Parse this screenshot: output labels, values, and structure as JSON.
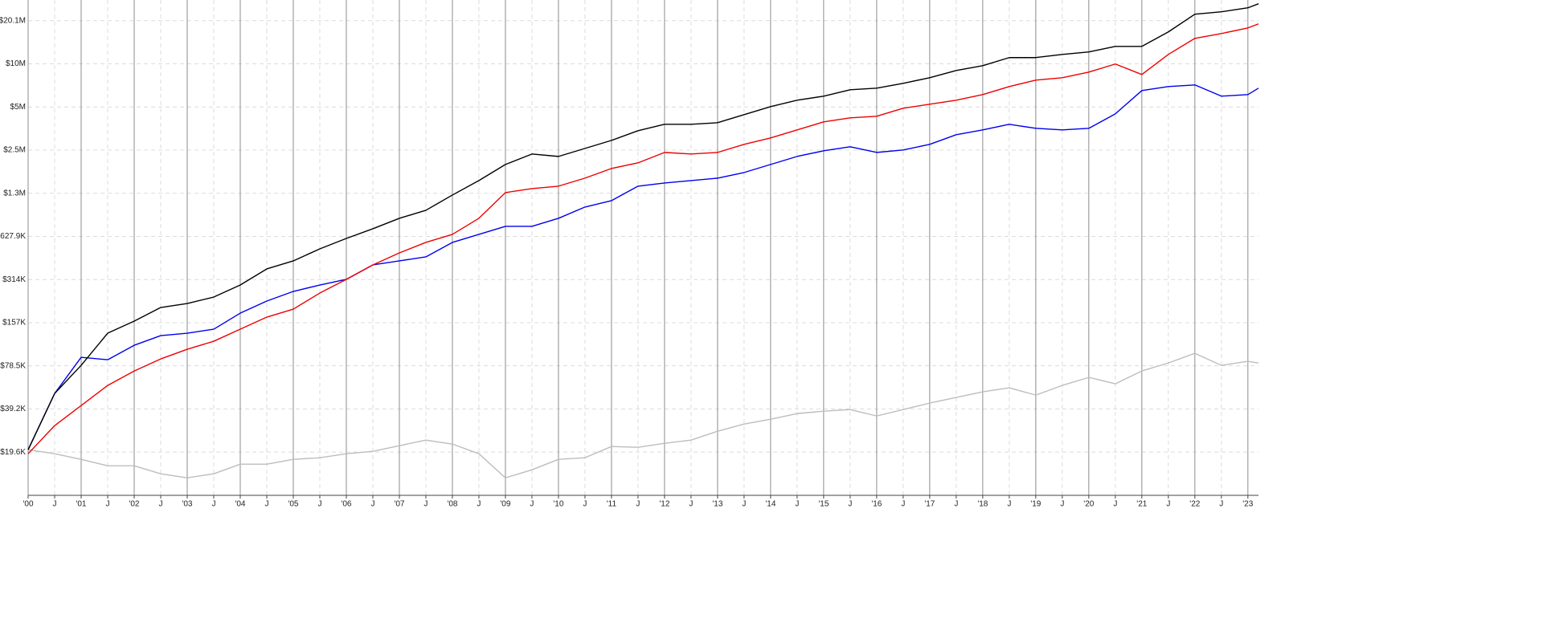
{
  "chart_data": {
    "type": "line",
    "log_y": true,
    "grid": true,
    "xlim": [
      2000,
      2023.2
    ],
    "ylim": [
      9800,
      28000000
    ],
    "yticks": [
      {
        "value": 19622,
        "label": "$19.6K"
      },
      {
        "value": 39244,
        "label": "$39.2K"
      },
      {
        "value": 78488,
        "label": "$78.5K"
      },
      {
        "value": 156975,
        "label": "$157K"
      },
      {
        "value": 313950,
        "label": "$314K"
      },
      {
        "value": 627900,
        "label": "$627.9K"
      },
      {
        "value": 1255800,
        "label": "$1.3M"
      },
      {
        "value": 2511600,
        "label": "$2.5M"
      },
      {
        "value": 5023200,
        "label": "$5M"
      },
      {
        "value": 10046400,
        "label": "$10M"
      },
      {
        "value": 20092800,
        "label": "$20.1M"
      }
    ],
    "xticks": [
      {
        "value": 2000,
        "label": "'00"
      },
      {
        "value": 2000.5,
        "label": "J"
      },
      {
        "value": 2001,
        "label": "'01"
      },
      {
        "value": 2001.5,
        "label": "J"
      },
      {
        "value": 2002,
        "label": "'02"
      },
      {
        "value": 2002.5,
        "label": "J"
      },
      {
        "value": 2003,
        "label": "'03"
      },
      {
        "value": 2003.5,
        "label": "J"
      },
      {
        "value": 2004,
        "label": "'04"
      },
      {
        "value": 2004.5,
        "label": "J"
      },
      {
        "value": 2005,
        "label": "'05"
      },
      {
        "value": 2005.5,
        "label": "J"
      },
      {
        "value": 2006,
        "label": "'06"
      },
      {
        "value": 2006.5,
        "label": "J"
      },
      {
        "value": 2007,
        "label": "'07"
      },
      {
        "value": 2007.5,
        "label": "J"
      },
      {
        "value": 2008,
        "label": "'08"
      },
      {
        "value": 2008.5,
        "label": "J"
      },
      {
        "value": 2009,
        "label": "'09"
      },
      {
        "value": 2009.5,
        "label": "J"
      },
      {
        "value": 2010,
        "label": "'10"
      },
      {
        "value": 2010.5,
        "label": "J"
      },
      {
        "value": 2011,
        "label": "'11"
      },
      {
        "value": 2011.5,
        "label": "J"
      },
      {
        "value": 2012,
        "label": "'12"
      },
      {
        "value": 2012.5,
        "label": "J"
      },
      {
        "value": 2013,
        "label": "'13"
      },
      {
        "value": 2013.5,
        "label": "J"
      },
      {
        "value": 2014,
        "label": "'14"
      },
      {
        "value": 2014.5,
        "label": "J"
      },
      {
        "value": 2015,
        "label": "'15"
      },
      {
        "value": 2015.5,
        "label": "J"
      },
      {
        "value": 2016,
        "label": "'16"
      },
      {
        "value": 2016.5,
        "label": "J"
      },
      {
        "value": 2017,
        "label": "'17"
      },
      {
        "value": 2017.5,
        "label": "J"
      },
      {
        "value": 2018,
        "label": "'18"
      },
      {
        "value": 2018.5,
        "label": "J"
      },
      {
        "value": 2019,
        "label": "'19"
      },
      {
        "value": 2019.5,
        "label": "J"
      },
      {
        "value": 2020,
        "label": "'20"
      },
      {
        "value": 2020.5,
        "label": "J"
      },
      {
        "value": 2021,
        "label": "'21"
      },
      {
        "value": 2021.5,
        "label": "J"
      },
      {
        "value": 2022,
        "label": "'22"
      },
      {
        "value": 2022.5,
        "label": "J"
      },
      {
        "value": 2023,
        "label": "'23"
      }
    ],
    "x": [
      2000,
      2000.5,
      2001,
      2001.5,
      2002,
      2002.5,
      2003,
      2003.5,
      2004,
      2004.5,
      2005,
      2005.5,
      2006,
      2006.5,
      2007,
      2007.5,
      2008,
      2008.5,
      2009,
      2009.5,
      2010,
      2010.5,
      2011,
      2011.5,
      2012,
      2012.5,
      2013,
      2013.5,
      2014,
      2014.5,
      2015,
      2015.5,
      2016,
      2016.5,
      2017,
      2017.5,
      2018,
      2018.5,
      2019,
      2019.5,
      2020,
      2020.5,
      2021,
      2021.5,
      2022,
      2022.5,
      2023,
      2023.2
    ],
    "series": [
      {
        "color": "#bdbdbd",
        "values": [
          20400,
          19120,
          17470,
          15750,
          15750,
          13850,
          12980,
          13850,
          16160,
          16160,
          17470,
          17930,
          19120,
          19870,
          21750,
          23810,
          22330,
          19120,
          12980,
          14770,
          17470,
          17930,
          21470,
          21200,
          22620,
          23810,
          27450,
          30830,
          33310,
          36460,
          37890,
          38880,
          35080,
          38880,
          43120,
          47200,
          51680,
          55110,
          49060,
          57280,
          65160,
          58780,
          72250,
          82170,
          95980,
          79100,
          84370,
          82170
        ]
      },
      {
        "color": "#0000ee",
        "values": [
          20400,
          50330,
          90000,
          86570,
          109200,
          127500,
          132600,
          141400,
          183000,
          222200,
          259300,
          287500,
          314800,
          397200,
          423600,
          451800,
          569900,
          648500,
          737800,
          737800,
          839500,
          1006000,
          1115000,
          1407000,
          1481000,
          1540000,
          1601000,
          1752000,
          1993000,
          2268000,
          2483000,
          2649000,
          2419000,
          2515000,
          2754000,
          3214000,
          3473000,
          3800000,
          3563000,
          3473000,
          3563000,
          4495000,
          6537000,
          6972000,
          7156000,
          5973000,
          6129000,
          6795000
        ]
      },
      {
        "color": "#ee0000",
        "values": [
          19120,
          30040,
          41480,
          57280,
          72250,
          87700,
          102400,
          116500,
          141400,
          171600,
          195200,
          252600,
          314800,
          397200,
          481900,
          569900,
          648500,
          839500,
          1269000,
          1353000,
          1407000,
          1601000,
          1869000,
          2046000,
          2419000,
          2358000,
          2419000,
          2754000,
          3052000,
          3473000,
          3951000,
          4214000,
          4324000,
          4920000,
          5248000,
          5598000,
          6129000,
          6972000,
          7731000,
          8035000,
          8795000,
          10010000,
          8461000,
          11680000,
          15120000,
          16340000,
          17880000,
          19080000
        ]
      },
      {
        "color": "#000000",
        "values": [
          20400,
          50330,
          79100,
          132600,
          160900,
          200300,
          213700,
          236900,
          287500,
          372300,
          423600,
          514000,
          607800,
          710000,
          839500,
          955000,
          1220000,
          1540000,
          1993000,
          2358000,
          2268000,
          2580000,
          2936000,
          3428000,
          3800000,
          3800000,
          3900000,
          4437000,
          5050000,
          5598000,
          5973000,
          6622000,
          6795000,
          7343000,
          8035000,
          9027000,
          9752000,
          11100000,
          11100000,
          11680000,
          12150000,
          13290000,
          13290000,
          16770000,
          22280000,
          23160000,
          24700000,
          26350000
        ]
      }
    ]
  }
}
